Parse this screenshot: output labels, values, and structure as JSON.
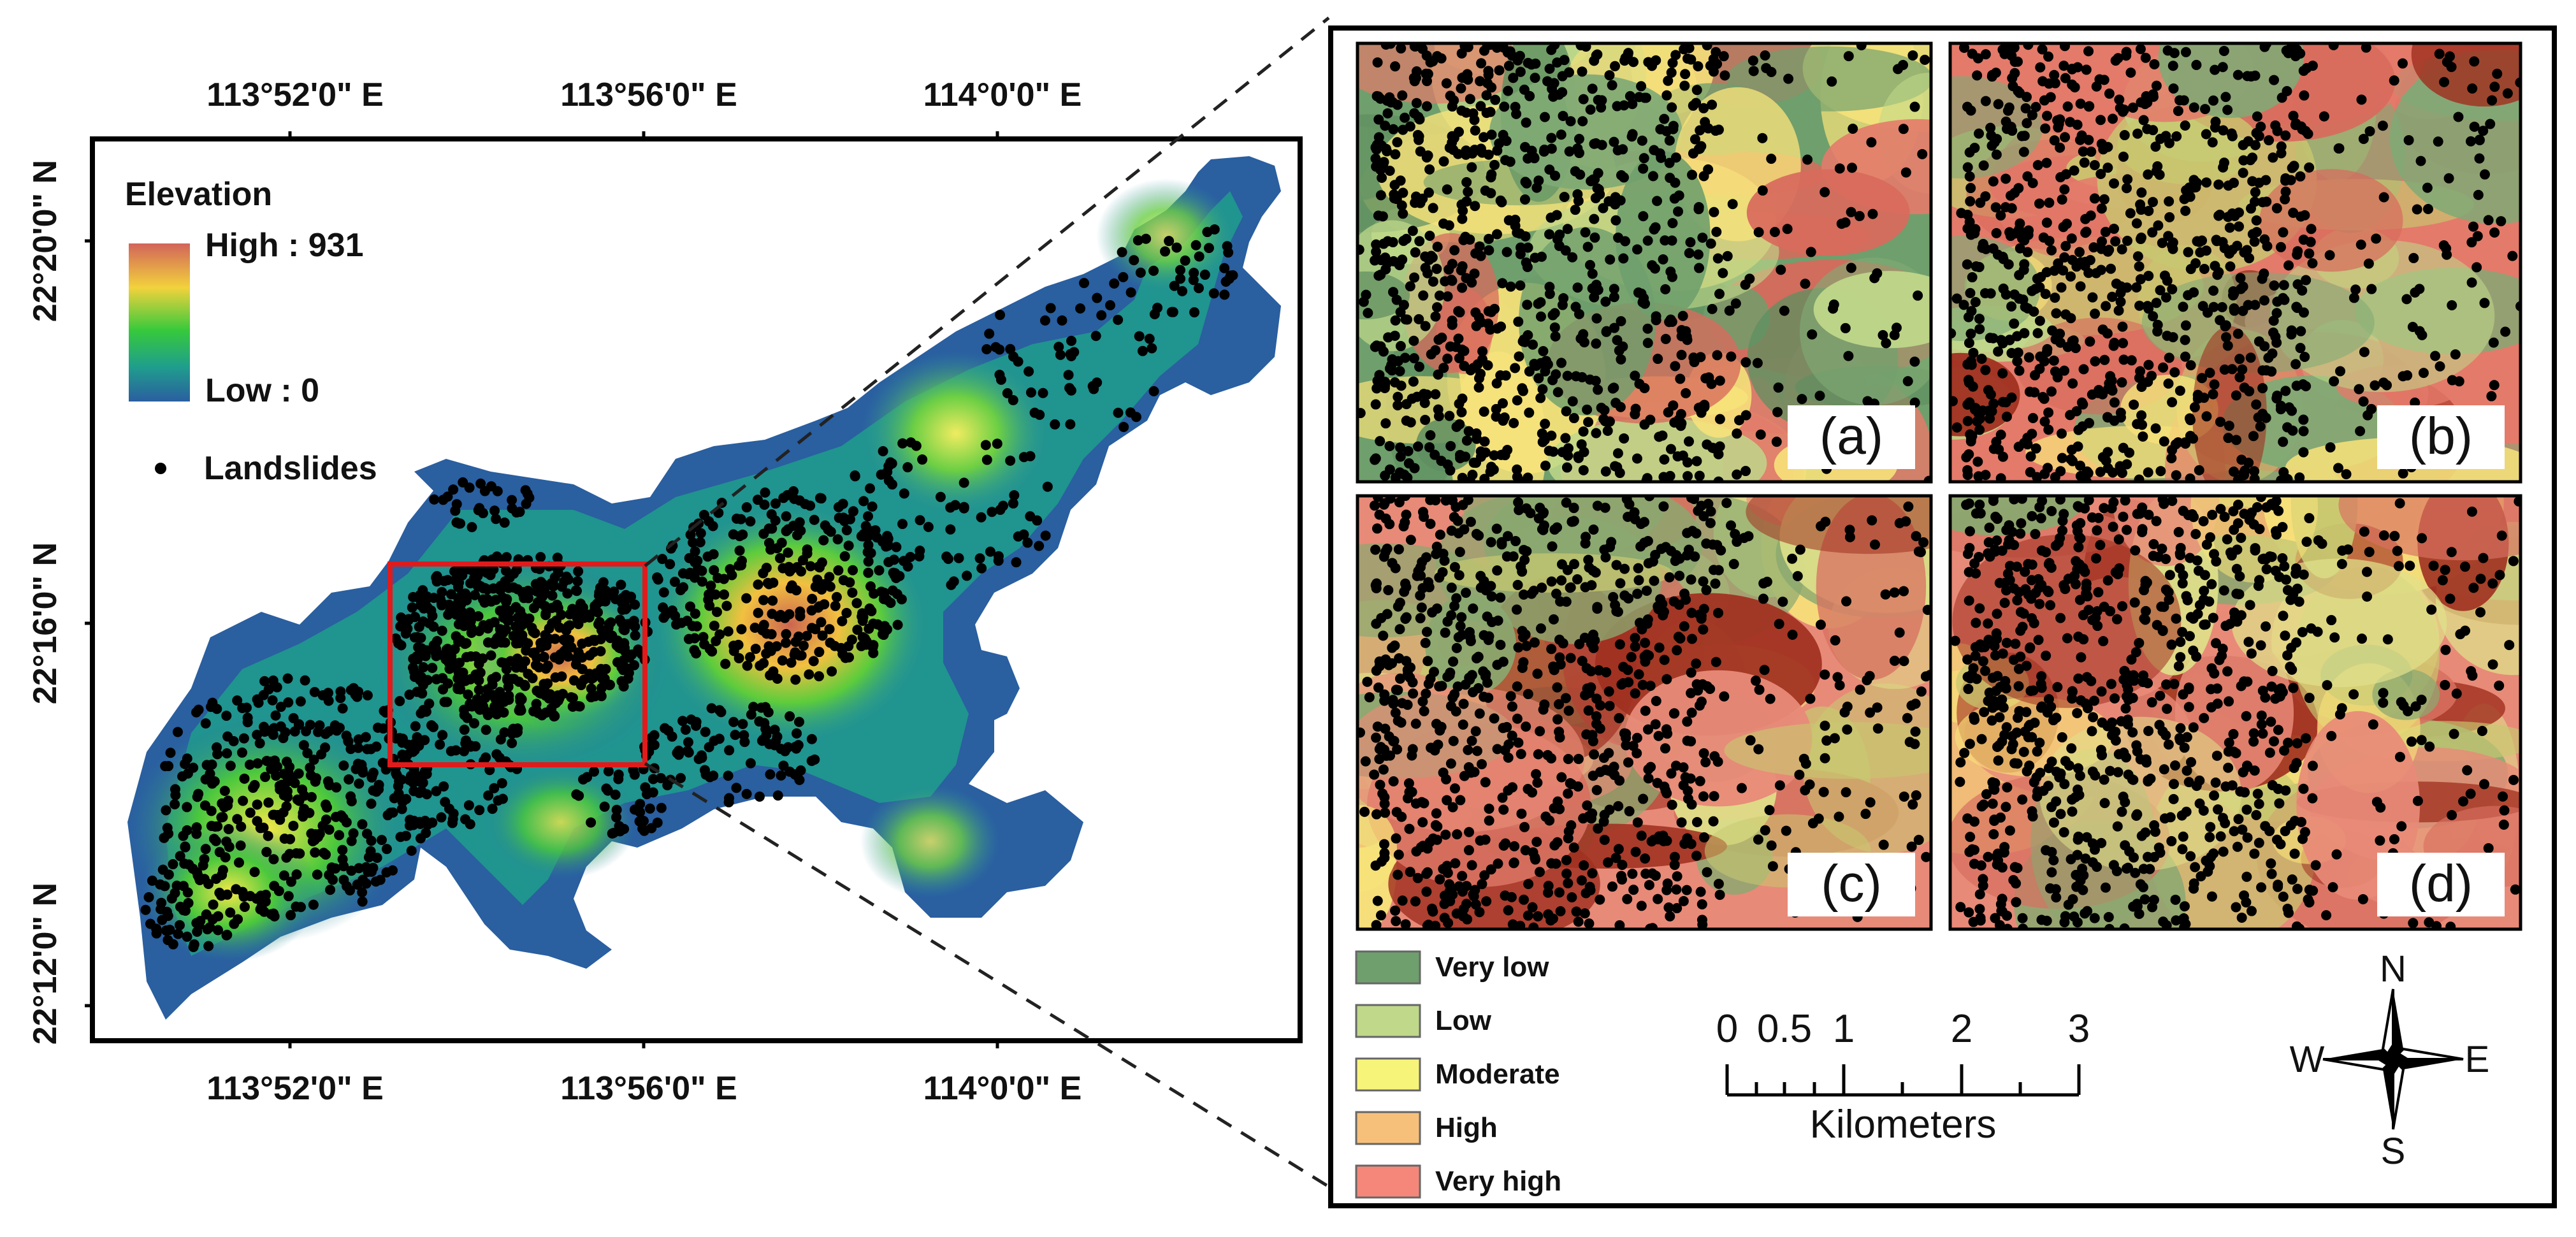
{
  "overview_map": {
    "top_ticks": [
      "113°52'0\" E",
      "113°56'0\" E",
      "114°0'0\" E"
    ],
    "bottom_ticks": [
      "113°52'0\" E",
      "113°56'0\" E",
      "114°0'0\" E"
    ],
    "left_ticks": [
      "22°20'0\" N",
      "22°16'0\" N",
      "22°12'0\" N"
    ],
    "legend": {
      "title": "Elevation",
      "high_label": "High : 931",
      "low_label": "Low : 0",
      "landslides_label": "Landslides",
      "ramp_colors": [
        "#d2645a",
        "#f2d23c",
        "#37c93c",
        "#1f9e8c",
        "#2a5fa0"
      ]
    },
    "highlight_box_color": "#e01b1b"
  },
  "detail_panels": [
    {
      "label": "(a)"
    },
    {
      "label": "(b)"
    },
    {
      "label": "(c)"
    },
    {
      "label": "(d)"
    }
  ],
  "susceptibility_legend": [
    {
      "label": "Very low",
      "color": "#6f9f6c"
    },
    {
      "label": "Low",
      "color": "#bfd88a"
    },
    {
      "label": "Moderate",
      "color": "#f7f47a"
    },
    {
      "label": "High",
      "color": "#f7c07a"
    },
    {
      "label": "Very high",
      "color": "#f4877a"
    }
  ],
  "scale_bar": {
    "tick_labels": [
      "0",
      "0.5",
      "1",
      "2",
      "3"
    ],
    "unit": "Kilometers"
  },
  "north_arrow": {
    "n": "N",
    "s": "S",
    "e": "E",
    "w": "W"
  }
}
